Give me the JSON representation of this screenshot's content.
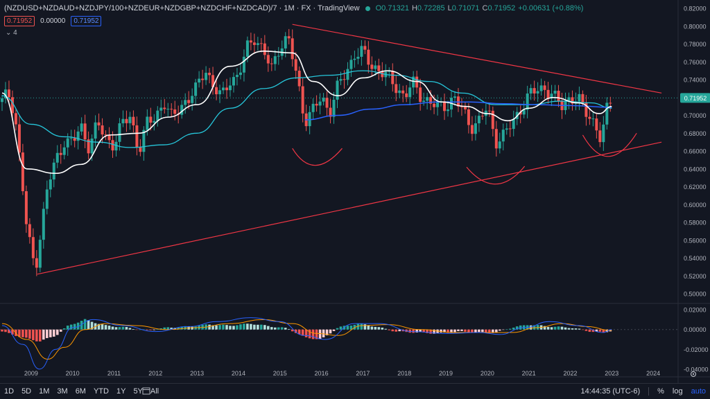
{
  "header": {
    "symbol": "(NZDUSD+NZDAUD+NZDJPY/100+NZDEUR+NZDGBP+NZDCHF+NZDCAD)/7 · 1M · FX · TradingView",
    "open_label": "O",
    "open": "0.71321",
    "high_label": "H",
    "high": "0.72285",
    "low_label": "L",
    "low": "0.71071",
    "close_label": "C",
    "close": "0.71952",
    "change": "+0.00631 (+0.88%)"
  },
  "indicator_row": {
    "v1": "0.71952",
    "v2": "0.00000",
    "v3": "0.71952"
  },
  "collapsed_count": "4",
  "bottombar": {
    "ranges": [
      "1D",
      "5D",
      "1M",
      "3M",
      "6M",
      "YTD",
      "1Y",
      "5Y",
      "All"
    ],
    "clock": "14:44:35 (UTC-6)",
    "percent": "%",
    "log": "log",
    "auto": "auto"
  },
  "colors": {
    "up": "#26a69a",
    "down": "#ef5350",
    "ma_white": "#ffffff",
    "ma_teal": "#26c6da",
    "ma_blue": "#2962ff",
    "trend": "#f23645",
    "macd": "#2962ff",
    "signal": "#ff9800"
  },
  "chart_data": {
    "type": "candlestick",
    "price_axis": {
      "ylim": [
        0.49,
        0.82
      ],
      "ticks": [
        "0.82000",
        "0.80000",
        "0.78000",
        "0.76000",
        "0.74000",
        "0.72000",
        "0.70000",
        "0.68000",
        "0.66000",
        "0.64000",
        "0.62000",
        "0.60000",
        "0.58000",
        "0.56000",
        "0.54000",
        "0.52000",
        "0.50000"
      ],
      "last_price": "0.71952"
    },
    "time_axis": {
      "xlim": [
        2008.25,
        2024.6
      ],
      "ticks": [
        "2009",
        "2010",
        "2011",
        "2012",
        "2013",
        "2014",
        "2015",
        "2016",
        "2017",
        "2018",
        "2019",
        "2020",
        "2021",
        "2022",
        "2023",
        "2024"
      ]
    },
    "price_path": [
      [
        2008.3,
        0.715
      ],
      [
        2008.45,
        0.725
      ],
      [
        2008.6,
        0.705
      ],
      [
        2008.75,
        0.64
      ],
      [
        2008.9,
        0.57
      ],
      [
        2009.1,
        0.528
      ],
      [
        2009.2,
        0.56
      ],
      [
        2009.4,
        0.62
      ],
      [
        2009.6,
        0.65
      ],
      [
        2009.8,
        0.672
      ],
      [
        2010.0,
        0.668
      ],
      [
        2010.2,
        0.688
      ],
      [
        2010.4,
        0.665
      ],
      [
        2010.6,
        0.69
      ],
      [
        2010.8,
        0.675
      ],
      [
        2011.0,
        0.668
      ],
      [
        2011.2,
        0.69
      ],
      [
        2011.4,
        0.7
      ],
      [
        2011.6,
        0.66
      ],
      [
        2011.8,
        0.69
      ],
      [
        2012.0,
        0.7
      ],
      [
        2012.2,
        0.715
      ],
      [
        2012.4,
        0.695
      ],
      [
        2012.6,
        0.712
      ],
      [
        2012.8,
        0.718
      ],
      [
        2013.0,
        0.73
      ],
      [
        2013.2,
        0.755
      ],
      [
        2013.4,
        0.73
      ],
      [
        2013.6,
        0.72
      ],
      [
        2013.8,
        0.742
      ],
      [
        2014.0,
        0.742
      ],
      [
        2014.2,
        0.775
      ],
      [
        2014.4,
        0.79
      ],
      [
        2014.6,
        0.77
      ],
      [
        2014.8,
        0.752
      ],
      [
        2015.0,
        0.78
      ],
      [
        2015.2,
        0.785
      ],
      [
        2015.4,
        0.745
      ],
      [
        2015.6,
        0.695
      ],
      [
        2015.8,
        0.705
      ],
      [
        2016.0,
        0.72
      ],
      [
        2016.2,
        0.705
      ],
      [
        2016.4,
        0.732
      ],
      [
        2016.6,
        0.748
      ],
      [
        2016.8,
        0.77
      ],
      [
        2017.0,
        0.77
      ],
      [
        2017.2,
        0.756
      ],
      [
        2017.4,
        0.752
      ],
      [
        2017.6,
        0.742
      ],
      [
        2017.8,
        0.732
      ],
      [
        2018.0,
        0.722
      ],
      [
        2018.2,
        0.735
      ],
      [
        2018.4,
        0.722
      ],
      [
        2018.6,
        0.716
      ],
      [
        2018.8,
        0.708
      ],
      [
        2019.0,
        0.712
      ],
      [
        2019.2,
        0.72
      ],
      [
        2019.4,
        0.705
      ],
      [
        2019.6,
        0.688
      ],
      [
        2019.8,
        0.694
      ],
      [
        2020.0,
        0.708
      ],
      [
        2020.2,
        0.672
      ],
      [
        2020.4,
        0.678
      ],
      [
        2020.6,
        0.69
      ],
      [
        2020.8,
        0.708
      ],
      [
        2021.0,
        0.722
      ],
      [
        2021.2,
        0.728
      ],
      [
        2021.4,
        0.732
      ],
      [
        2021.6,
        0.72
      ],
      [
        2021.8,
        0.71
      ],
      [
        2022.0,
        0.722
      ],
      [
        2022.2,
        0.716
      ],
      [
        2022.4,
        0.702
      ],
      [
        2022.6,
        0.692
      ],
      [
        2022.75,
        0.67
      ],
      [
        2022.9,
        0.71
      ],
      [
        2023.0,
        0.7195
      ]
    ],
    "ma_white": [
      [
        2008.3,
        0.725
      ],
      [
        2008.9,
        0.64
      ],
      [
        2009.6,
        0.635
      ],
      [
        2010.2,
        0.645
      ],
      [
        2010.9,
        0.678
      ],
      [
        2011.6,
        0.68
      ],
      [
        2012.3,
        0.698
      ],
      [
        2013.0,
        0.712
      ],
      [
        2013.8,
        0.755
      ],
      [
        2014.6,
        0.772
      ],
      [
        2015.3,
        0.77
      ],
      [
        2015.8,
        0.738
      ],
      [
        2016.4,
        0.722
      ],
      [
        2017.0,
        0.742
      ],
      [
        2017.6,
        0.75
      ],
      [
        2018.3,
        0.738
      ],
      [
        2018.9,
        0.715
      ],
      [
        2019.5,
        0.71
      ],
      [
        2020.0,
        0.702
      ],
      [
        2020.5,
        0.694
      ],
      [
        2021.0,
        0.708
      ],
      [
        2021.6,
        0.72
      ],
      [
        2022.2,
        0.714
      ],
      [
        2022.7,
        0.702
      ],
      [
        2023.0,
        0.71
      ]
    ],
    "ma_teal": [
      [
        2008.3,
        0.722
      ],
      [
        2009.0,
        0.69
      ],
      [
        2009.8,
        0.676
      ],
      [
        2010.6,
        0.67
      ],
      [
        2011.4,
        0.664
      ],
      [
        2012.2,
        0.667
      ],
      [
        2013.0,
        0.68
      ],
      [
        2013.8,
        0.708
      ],
      [
        2014.6,
        0.73
      ],
      [
        2015.4,
        0.742
      ],
      [
        2016.2,
        0.745
      ],
      [
        2017.0,
        0.75
      ],
      [
        2017.8,
        0.745
      ],
      [
        2018.6,
        0.738
      ],
      [
        2019.4,
        0.725
      ],
      [
        2020.2,
        0.712
      ],
      [
        2021.0,
        0.712
      ],
      [
        2021.8,
        0.716
      ],
      [
        2022.5,
        0.714
      ],
      [
        2023.0,
        0.708
      ]
    ],
    "ma_blue": [
      [
        2015.6,
        0.695
      ],
      [
        2016.4,
        0.7
      ],
      [
        2017.2,
        0.707
      ],
      [
        2018.0,
        0.712
      ],
      [
        2018.8,
        0.715
      ],
      [
        2019.6,
        0.715
      ],
      [
        2020.4,
        0.713
      ],
      [
        2021.2,
        0.712
      ],
      [
        2022.0,
        0.711
      ],
      [
        2023.0,
        0.709
      ]
    ],
    "trendlines": [
      [
        [
          2009.15,
          0.522
        ],
        [
          2024.2,
          0.67
        ]
      ],
      [
        [
          2015.3,
          0.802
        ],
        [
          2024.2,
          0.725
        ]
      ]
    ],
    "arcs": [
      [
        [
          2015.3,
          0.663
        ],
        [
          2015.8,
          0.644
        ],
        [
          2016.5,
          0.663
        ]
      ],
      [
        [
          2019.5,
          0.642
        ],
        [
          2020.2,
          0.623
        ],
        [
          2020.9,
          0.643
        ]
      ],
      [
        [
          2022.3,
          0.678
        ],
        [
          2022.9,
          0.654
        ],
        [
          2023.6,
          0.68
        ]
      ]
    ],
    "macd_axis": {
      "ylim": [
        -0.045,
        0.025
      ],
      "ticks": [
        "0.02000",
        "0.00000",
        "-0.02000",
        "-0.04000"
      ]
    },
    "macd_hist_path": [
      [
        2008.3,
        -0.002
      ],
      [
        2008.8,
        -0.008
      ],
      [
        2009.2,
        -0.012
      ],
      [
        2009.6,
        -0.006
      ],
      [
        2009.9,
        0.004
      ],
      [
        2010.3,
        0.01
      ],
      [
        2010.8,
        0.004
      ],
      [
        2011.3,
        0.002
      ],
      [
        2011.8,
        -0.001
      ],
      [
        2012.3,
        0.002
      ],
      [
        2012.8,
        0.003
      ],
      [
        2013.3,
        0.005
      ],
      [
        2013.8,
        0.004
      ],
      [
        2014.3,
        0.006
      ],
      [
        2014.8,
        0.003
      ],
      [
        2015.2,
        0.001
      ],
      [
        2015.6,
        -0.008
      ],
      [
        2016.0,
        -0.01
      ],
      [
        2016.4,
        0.002
      ],
      [
        2016.9,
        0.006
      ],
      [
        2017.3,
        0.003
      ],
      [
        2017.8,
        -0.002
      ],
      [
        2018.3,
        -0.003
      ],
      [
        2018.8,
        -0.004
      ],
      [
        2019.3,
        -0.002
      ],
      [
        2019.8,
        -0.003
      ],
      [
        2020.2,
        -0.003
      ],
      [
        2020.6,
        0.002
      ],
      [
        2021.0,
        0.005
      ],
      [
        2021.5,
        0.003
      ],
      [
        2022.0,
        0.002
      ],
      [
        2022.5,
        -0.002
      ],
      [
        2022.8,
        -0.003
      ],
      [
        2023.0,
        -0.001
      ]
    ],
    "macd_line": [
      [
        2008.3,
        0.004
      ],
      [
        2008.8,
        -0.015
      ],
      [
        2009.2,
        -0.04
      ],
      [
        2009.6,
        -0.02
      ],
      [
        2010.0,
        0.002
      ],
      [
        2010.5,
        0.01
      ],
      [
        2011.2,
        0.004
      ],
      [
        2012.0,
        -0.002
      ],
      [
        2012.8,
        0.003
      ],
      [
        2013.5,
        0.008
      ],
      [
        2014.3,
        0.012
      ],
      [
        2015.0,
        0.008
      ],
      [
        2015.6,
        -0.006
      ],
      [
        2016.1,
        -0.01
      ],
      [
        2016.8,
        0.006
      ],
      [
        2017.4,
        0.006
      ],
      [
        2018.2,
        -0.002
      ],
      [
        2019.0,
        -0.004
      ],
      [
        2019.8,
        -0.003
      ],
      [
        2020.3,
        -0.005
      ],
      [
        2020.9,
        0.002
      ],
      [
        2021.5,
        0.008
      ],
      [
        2022.2,
        0.004
      ],
      [
        2022.8,
        -0.003
      ],
      [
        2023.0,
        0.0
      ]
    ],
    "signal_line": [
      [
        2008.3,
        0.006
      ],
      [
        2008.9,
        -0.01
      ],
      [
        2009.4,
        -0.03
      ],
      [
        2009.8,
        -0.018
      ],
      [
        2010.3,
        0.0
      ],
      [
        2010.8,
        0.006
      ],
      [
        2011.5,
        0.004
      ],
      [
        2012.3,
        0.0
      ],
      [
        2013.0,
        0.002
      ],
      [
        2013.8,
        0.006
      ],
      [
        2014.6,
        0.01
      ],
      [
        2015.3,
        0.006
      ],
      [
        2015.9,
        -0.004
      ],
      [
        2016.4,
        -0.006
      ],
      [
        2017.0,
        0.004
      ],
      [
        2017.6,
        0.005
      ],
      [
        2018.4,
        0.0
      ],
      [
        2019.2,
        -0.003
      ],
      [
        2020.0,
        -0.003
      ],
      [
        2020.6,
        -0.003
      ],
      [
        2021.2,
        0.002
      ],
      [
        2021.8,
        0.006
      ],
      [
        2022.4,
        0.003
      ],
      [
        2023.0,
        -0.001
      ]
    ]
  }
}
